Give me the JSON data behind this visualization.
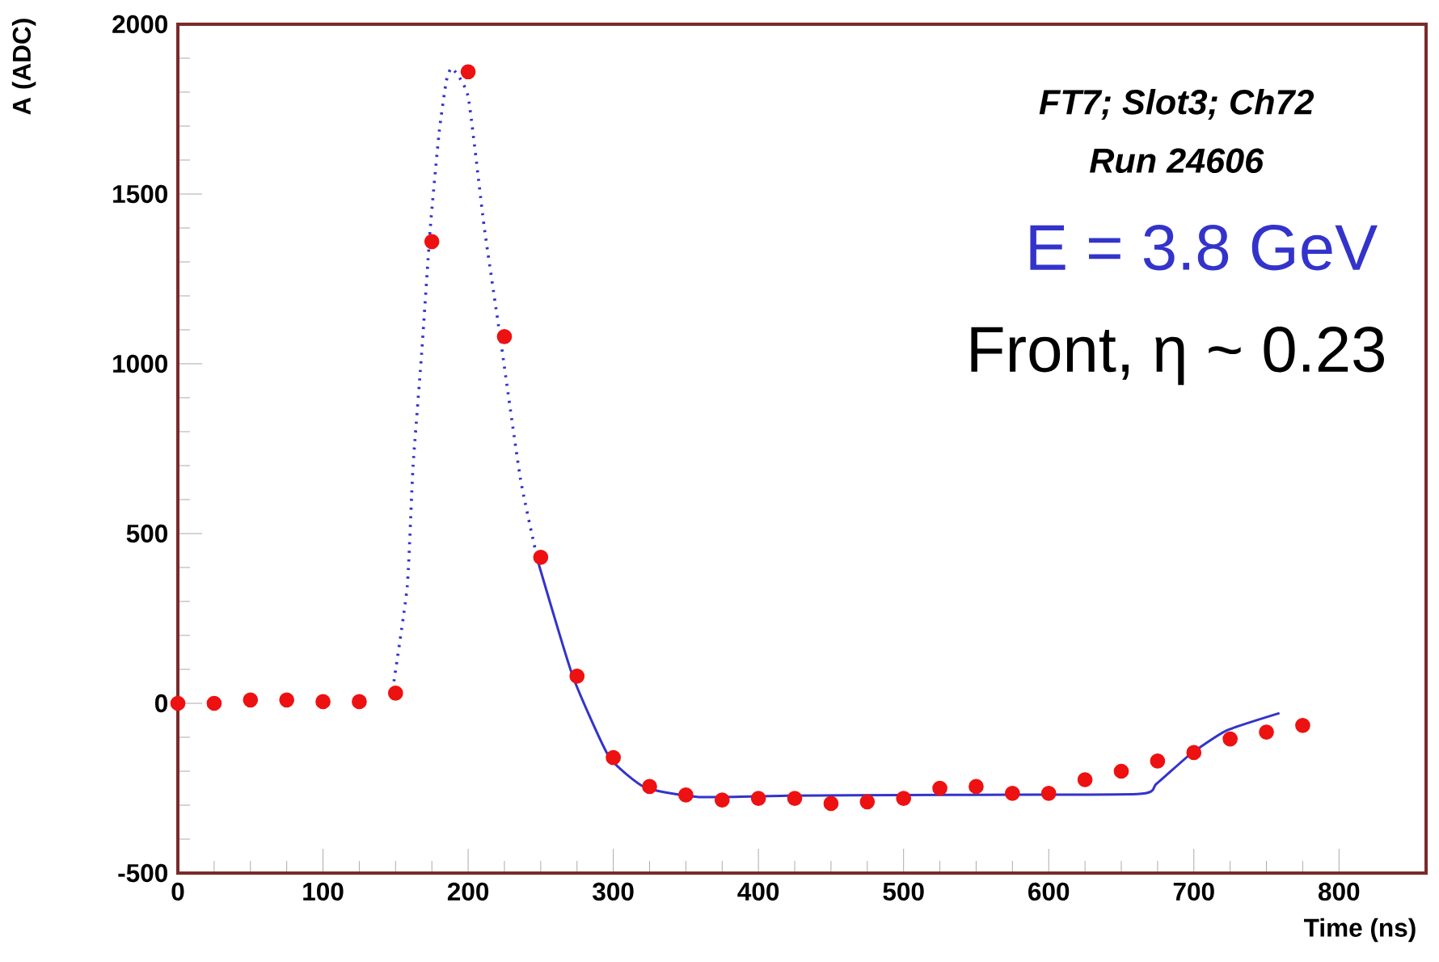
{
  "chart_data": {
    "type": "scatter",
    "xlabel": "Time (ns)",
    "ylabel": "A (ADC)",
    "annotations": [
      "**FT7; Slot3; Ch72**",
      "**Run 24606**",
      "E = 3.8 GeV",
      "Front, η ~ 0.23"
    ],
    "xlim": [
      0,
      860
    ],
    "ylim": [
      -500,
      2000
    ],
    "xticks": [
      0,
      100,
      200,
      300,
      400,
      500,
      600,
      700,
      800
    ],
    "yticks": [
      -500,
      0,
      500,
      1000,
      1500,
      2000
    ],
    "grid": false,
    "series": [
      {
        "color": "#ee1111",
        "marker": "circle",
        "x": [
          0,
          25,
          50,
          75,
          100,
          125,
          150,
          175,
          200,
          225,
          250,
          275,
          300,
          325,
          350,
          375,
          400,
          425,
          450,
          475,
          500,
          525,
          550,
          575,
          600,
          625,
          650,
          675,
          700,
          725,
          750,
          775
        ],
        "values": [
          0,
          0,
          10,
          10,
          5,
          5,
          30,
          1360,
          1860,
          1080,
          430,
          80,
          -160,
          -245,
          -270,
          -285,
          -280,
          -280,
          -295,
          -290,
          -280,
          -250,
          -245,
          -265,
          -265,
          -225,
          -200,
          -170,
          -145,
          -105,
          -85,
          -65
        ]
      },
      {
        "type": "line",
        "color": "#3333cc",
        "line_style": "dotted",
        "x": [
          148,
          158,
          162,
          168,
          174,
          180,
          185,
          189,
          200,
          211,
          222,
          236,
          248
        ],
        "values": [
          40,
          343,
          695,
          1033,
          1405,
          1681,
          1833,
          1870,
          1786,
          1405,
          1081,
          662,
          419
        ]
      },
      {
        "type": "line",
        "color": "#3333cc",
        "line_style": "solid",
        "x": [
          248,
          272,
          297,
          322,
          359,
          420,
          500,
          661,
          674,
          697,
          722,
          759
        ],
        "values": [
          419,
          81,
          -157,
          -248,
          -276,
          -272,
          -270,
          -267,
          -238,
          -152,
          -81,
          -29
        ]
      }
    ]
  }
}
